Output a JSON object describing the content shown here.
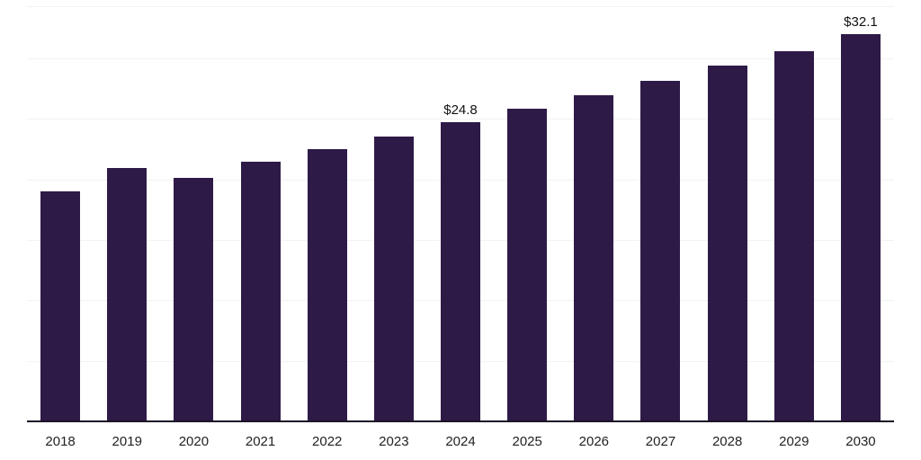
{
  "chart_data": {
    "type": "bar",
    "title": "",
    "xlabel": "",
    "ylabel": "",
    "categories": [
      "2018",
      "2019",
      "2020",
      "2021",
      "2022",
      "2023",
      "2024",
      "2025",
      "2026",
      "2027",
      "2028",
      "2029",
      "2030"
    ],
    "values": [
      19.1,
      21.0,
      20.2,
      21.5,
      22.6,
      23.6,
      24.8,
      25.9,
      27.0,
      28.2,
      29.5,
      30.7,
      32.1
    ],
    "data_labels": {
      "2024": "$24.8",
      "2030": "$32.1"
    },
    "bar_color": "#2e1a47",
    "axis_line_color": "#1c1526",
    "gridline_color": "#f2f2f2",
    "ylim": [
      0,
      34.3
    ],
    "gridline_values": [
      5,
      10,
      15,
      20,
      25,
      30,
      34.3
    ],
    "grid": true,
    "legend_position": "none"
  }
}
